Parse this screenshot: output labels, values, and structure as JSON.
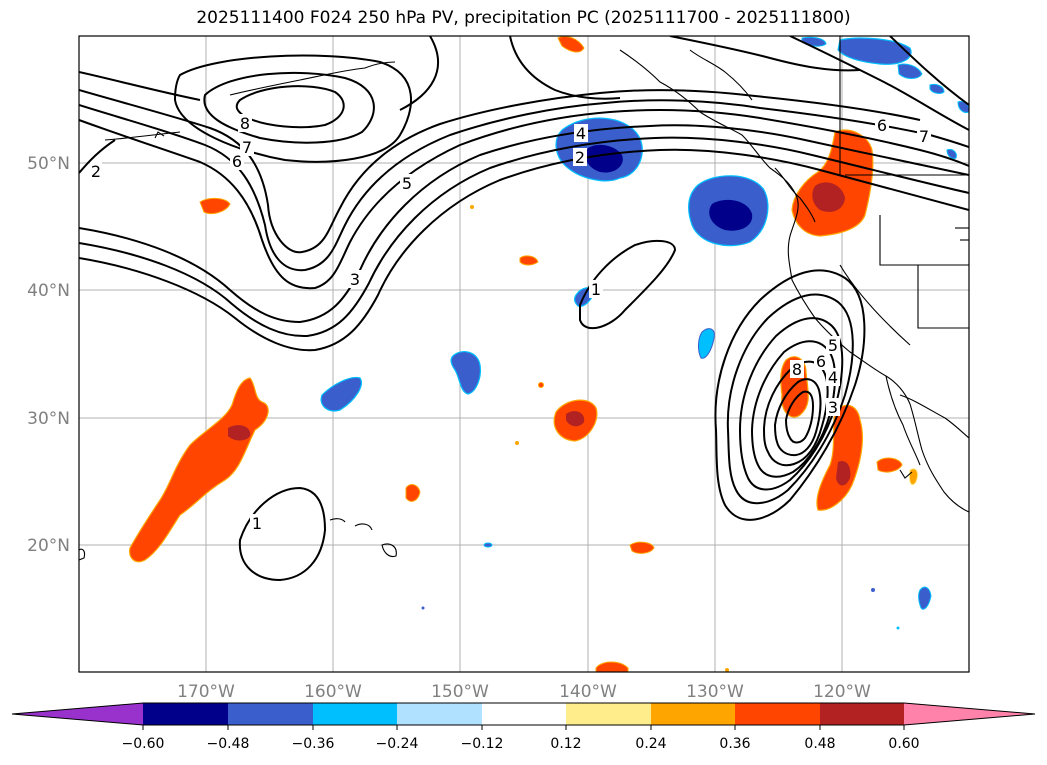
{
  "title": "2025111400 F024 250 hPa PV, precipitation PC (2025111700 - 2025111800)",
  "map": {
    "lat_labels": [
      "50°N",
      "40°N",
      "30°N",
      "20°N"
    ],
    "lon_labels": [
      "170°W",
      "160°W",
      "150°W",
      "140°W",
      "130°W",
      "120°W"
    ],
    "extent_lon": [
      -180,
      -110
    ],
    "extent_lat": [
      10,
      60
    ],
    "contour_labels": [
      "2",
      "4",
      "2",
      "5",
      "3",
      "1",
      "6",
      "8",
      "7",
      "6",
      "7",
      "1",
      "8",
      "6",
      "4",
      "3",
      "5"
    ]
  },
  "colorbar": {
    "ticks": [
      "−0.60",
      "−0.48",
      "−0.36",
      "−0.24",
      "−0.12",
      "0.12",
      "0.24",
      "0.36",
      "0.48",
      "0.60"
    ],
    "colors": {
      "below": "#9932cc",
      "n060_n048": "#00008b",
      "n048_n036": "#3a5fcd",
      "n036_n024": "#00bfff",
      "n024_n012": "#b0e2ff",
      "neutral": "#ffffff",
      "p012_p024": "#ffec8b",
      "p024_p036": "#ffa500",
      "p036_p048": "#ff4500",
      "p048_p060": "#b22222",
      "above": "#ff82ab"
    }
  }
}
